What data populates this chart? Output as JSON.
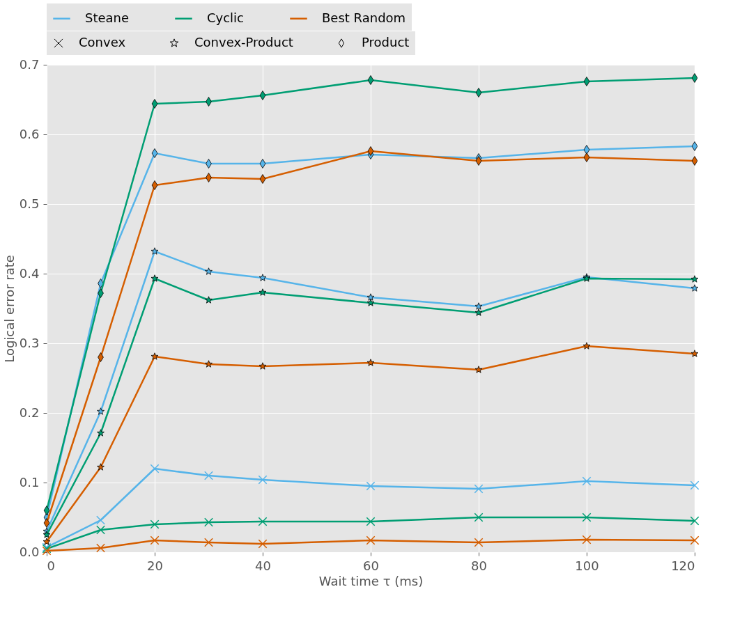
{
  "chart_data": {
    "type": "line",
    "xlabel": "Wait time τ (ms)",
    "ylabel": "Logical error rate",
    "x": [
      0,
      10,
      20,
      30,
      40,
      60,
      80,
      100,
      120
    ],
    "xlim": [
      0,
      120
    ],
    "xticks": [
      0,
      20,
      40,
      60,
      80,
      100,
      120
    ],
    "ylim": [
      0,
      0.7
    ],
    "yticks": [
      {
        "value": 0,
        "label": "0.0"
      },
      0.1,
      0.2,
      0.3,
      0.4,
      0.5,
      0.6,
      0.7
    ],
    "grid": true,
    "legend": "top",
    "line_style": "solid",
    "annotations": [
      "Convex",
      "Convex-Product",
      "Product"
    ],
    "series": [
      {
        "name": "Steane",
        "color": "#56b4e9",
        "marker": "cross",
        "values": [
          0.007,
          0.046,
          0.12,
          0.11,
          0.104,
          0.095,
          0.091,
          0.102,
          0.096
        ]
      },
      {
        "name": "Cyclic",
        "color": "#009e73",
        "marker": "cross",
        "values": [
          0.005,
          0.032,
          0.04,
          0.043,
          0.044,
          0.044,
          0.05,
          0.05,
          0.045
        ]
      },
      {
        "name": "Best Random",
        "color": "#d55e00",
        "marker": "cross",
        "values": [
          0.002,
          0.006,
          0.017,
          0.014,
          0.012,
          0.017,
          0.014,
          0.018,
          0.017
        ]
      },
      {
        "color": "#56b4e9",
        "marker": "star",
        "values": [
          0.03,
          0.202,
          0.432,
          0.403,
          0.394,
          0.366,
          0.353,
          0.395,
          0.379
        ]
      },
      {
        "color": "#009e73",
        "marker": "star",
        "values": [
          0.025,
          0.171,
          0.393,
          0.362,
          0.373,
          0.358,
          0.344,
          0.393,
          0.392
        ]
      },
      {
        "color": "#d55e00",
        "marker": "star",
        "values": [
          0.015,
          0.122,
          0.281,
          0.27,
          0.267,
          0.272,
          0.262,
          0.296,
          0.285
        ]
      },
      {
        "color": "#56b4e9",
        "marker": "diamond",
        "values": [
          0.05,
          0.386,
          0.573,
          0.558,
          0.558,
          0.571,
          0.566,
          0.578,
          0.583
        ]
      },
      {
        "color": "#009e73",
        "marker": "diamond",
        "values": [
          0.06,
          0.372,
          0.644,
          0.647,
          0.656,
          0.678,
          0.66,
          0.676,
          0.681
        ]
      },
      {
        "color": "#d55e00",
        "marker": "diamond",
        "values": [
          0.042,
          0.28,
          0.527,
          0.538,
          0.536,
          0.576,
          0.562,
          0.567,
          0.562
        ]
      }
    ]
  }
}
